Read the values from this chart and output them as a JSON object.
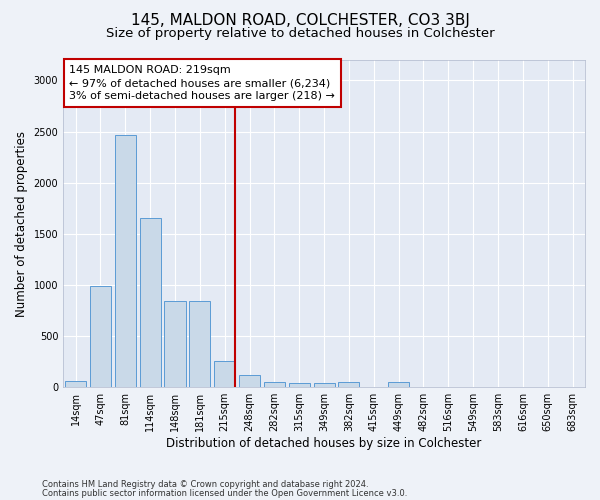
{
  "title": "145, MALDON ROAD, COLCHESTER, CO3 3BJ",
  "subtitle": "Size of property relative to detached houses in Colchester",
  "xlabel": "Distribution of detached houses by size in Colchester",
  "ylabel": "Number of detached properties",
  "categories": [
    "14sqm",
    "47sqm",
    "81sqm",
    "114sqm",
    "148sqm",
    "181sqm",
    "215sqm",
    "248sqm",
    "282sqm",
    "315sqm",
    "349sqm",
    "382sqm",
    "415sqm",
    "449sqm",
    "482sqm",
    "516sqm",
    "549sqm",
    "583sqm",
    "616sqm",
    "650sqm",
    "683sqm"
  ],
  "values": [
    60,
    990,
    2470,
    1650,
    840,
    840,
    260,
    115,
    55,
    45,
    45,
    55,
    0,
    50,
    0,
    0,
    0,
    0,
    0,
    0,
    0
  ],
  "bar_color": "#c9d9e8",
  "bar_edge_color": "#5b9bd5",
  "highlight_index": 6,
  "highlight_line_color": "#c00000",
  "annotation_text": "145 MALDON ROAD: 219sqm\n← 97% of detached houses are smaller (6,234)\n3% of semi-detached houses are larger (218) →",
  "annotation_box_color": "#ffffff",
  "annotation_box_edge_color": "#c00000",
  "ylim": [
    0,
    3200
  ],
  "yticks": [
    0,
    500,
    1000,
    1500,
    2000,
    2500,
    3000
  ],
  "footer_line1": "Contains HM Land Registry data © Crown copyright and database right 2024.",
  "footer_line2": "Contains public sector information licensed under the Open Government Licence v3.0.",
  "background_color": "#eef2f8",
  "plot_background": "#e4eaf4",
  "grid_color": "#ffffff",
  "title_fontsize": 11,
  "subtitle_fontsize": 9.5,
  "axis_label_fontsize": 8.5,
  "tick_fontsize": 7,
  "annotation_fontsize": 8,
  "footer_fontsize": 6
}
